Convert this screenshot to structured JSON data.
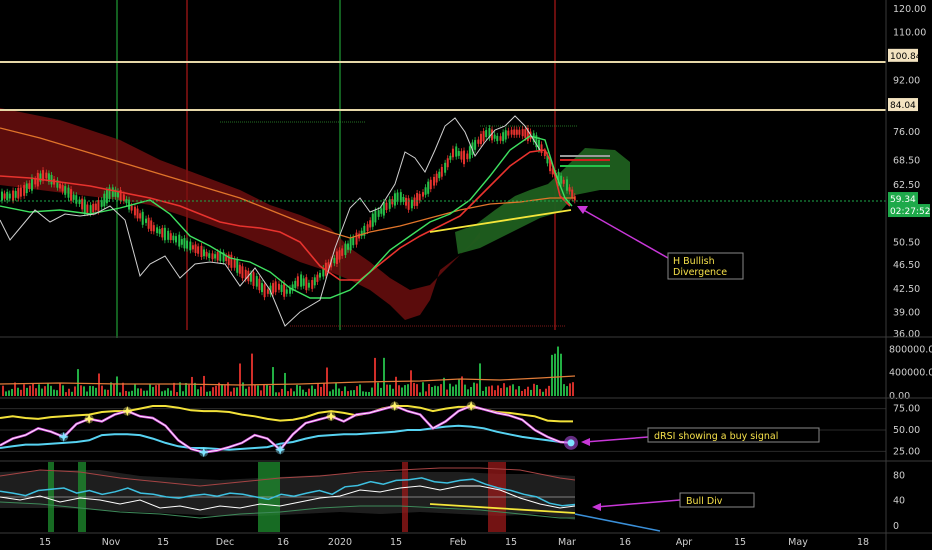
{
  "chart_data": [
    {
      "type": "line",
      "panel": "price",
      "y_axis_ticks": [
        "120.00",
        "110.00",
        "100.84",
        "92.00",
        "84.04",
        "76.00",
        "68.50",
        "62.50",
        "59.34",
        "02:27:52",
        "50.50",
        "46.50",
        "42.50",
        "39.00",
        "36.00"
      ],
      "yscale": "log",
      "ylim": [
        36,
        124
      ],
      "horizontal_levels": [
        100.84,
        84.04
      ],
      "last_price": 59.34,
      "countdown": "02:27:52",
      "annotation": "H Bullish\nDivergence",
      "series": [
        {
          "values": [
            80,
            79,
            77,
            74,
            71,
            69,
            66,
            64,
            62,
            61,
            60,
            59,
            57,
            55,
            53,
            51,
            50,
            49,
            47,
            46,
            45,
            44,
            44,
            43,
            43,
            44,
            45,
            46,
            47,
            49,
            51,
            52,
            53,
            53,
            54,
            55,
            55,
            56,
            57,
            58,
            59,
            60,
            61,
            62,
            62,
            63,
            64,
            65,
            66,
            67
          ]
        },
        {
          "values": [
            60,
            61,
            63,
            65,
            63,
            61,
            59,
            57,
            58,
            61,
            60,
            57,
            55,
            53,
            52,
            51,
            50,
            49,
            48,
            48,
            47,
            45,
            44,
            42,
            43,
            42,
            44,
            43,
            45,
            47,
            49,
            51,
            53,
            56,
            58,
            60,
            58,
            60,
            63,
            66,
            71,
            69,
            73,
            76,
            74,
            76,
            76,
            75,
            71,
            65,
            63,
            59
          ]
        }
      ],
      "yellow_trend": [
        51,
        55.6
      ]
    },
    {
      "type": "bar",
      "panel": "volume",
      "y_axis_ticks": [
        "800000.00",
        "400000.00",
        "0.00"
      ],
      "ylim": [
        0,
        960000
      ]
    },
    {
      "type": "line",
      "panel": "dRSI",
      "y_axis_ticks": [
        "75.00",
        "50.00",
        "25.00"
      ],
      "ylim": [
        15,
        85
      ],
      "annotation": "dRSI showing a buy signal",
      "series": [
        {
          "values": [
            64,
            66,
            64,
            63,
            65,
            66,
            67,
            68,
            71,
            72,
            72,
            75,
            78,
            78,
            76,
            73,
            72,
            72,
            71,
            68,
            66,
            63,
            61,
            62,
            65,
            70,
            72,
            70,
            67,
            70,
            75,
            78,
            78,
            76,
            72,
            75,
            77,
            77,
            74,
            71,
            70,
            68,
            66,
            61,
            60,
            60
          ]
        },
        {
          "values": [
            29,
            31,
            33,
            33,
            34,
            35,
            36,
            38,
            44,
            45,
            45,
            44,
            40,
            35,
            31,
            29,
            29,
            28,
            27,
            28,
            29,
            30,
            34,
            36,
            40,
            43,
            44,
            45,
            45,
            46,
            47,
            48,
            50,
            50,
            52,
            54,
            55,
            54,
            52,
            48,
            45,
            42,
            40,
            38,
            36,
            35
          ]
        },
        {
          "values": [
            32,
            40,
            44,
            52,
            48,
            42,
            57,
            63,
            60,
            68,
            72,
            66,
            64,
            55,
            38,
            28,
            24,
            26,
            30,
            35,
            44,
            40,
            27,
            45,
            58,
            62,
            66,
            60,
            68,
            70,
            74,
            78,
            72,
            68,
            52,
            60,
            72,
            78,
            74,
            70,
            67,
            62,
            50,
            42,
            36,
            35
          ]
        }
      ]
    },
    {
      "type": "line",
      "panel": "oscillator",
      "y_axis_ticks": [
        "80",
        "40",
        "0"
      ],
      "ylim": [
        -8,
        98
      ],
      "annotation": "Bull Div",
      "series": [
        {
          "values": [
            55,
            52,
            48,
            56,
            58,
            60,
            52,
            56,
            50,
            54,
            60,
            52,
            50,
            46,
            44,
            48,
            50,
            47,
            52,
            50,
            46,
            42,
            50,
            47,
            52,
            56,
            50,
            62,
            64,
            70,
            66,
            72,
            73,
            76,
            70,
            68,
            72,
            74,
            66,
            60,
            56,
            50,
            46,
            36,
            32,
            34
          ]
        }
      ]
    }
  ],
  "x_axis_ticks": [
    "15",
    "Nov",
    "15",
    "Dec",
    "16",
    "2020",
    "15",
    "Feb",
    "15",
    "Mar",
    "16",
    "Apr",
    "15",
    "May",
    "18"
  ]
}
